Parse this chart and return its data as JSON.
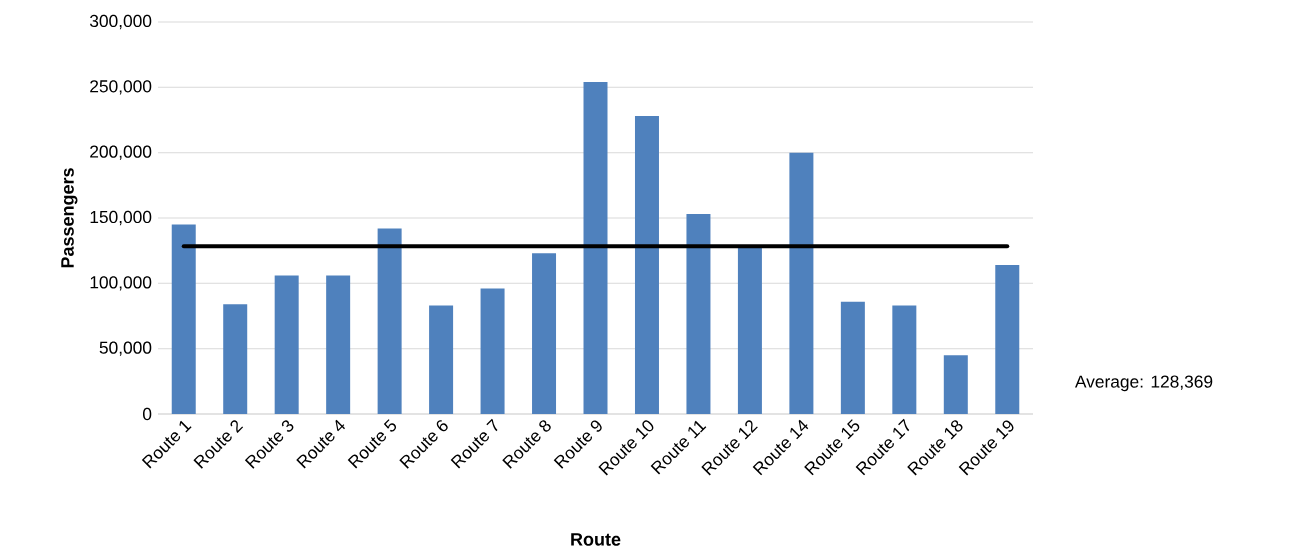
{
  "chart_data": {
    "type": "bar",
    "xlabel": "Route",
    "ylabel": "Passengers",
    "categories": [
      "Route 1",
      "Route 2",
      "Route 3",
      "Route 4",
      "Route 5",
      "Route 6",
      "Route 7",
      "Route 8",
      "Route 9",
      "Route 10",
      "Route 11",
      "Route 12",
      "Route 14",
      "Route 15",
      "Route 17",
      "Route 18",
      "Route 19"
    ],
    "values": [
      145000,
      84000,
      106000,
      106000,
      142000,
      83000,
      96000,
      123000,
      254000,
      228000,
      153000,
      128000,
      200000,
      86000,
      83000,
      45000,
      114000
    ],
    "color": "#4f81bd",
    "ylim": [
      0,
      300000
    ],
    "yticks": [
      {
        "value": 0,
        "label": "0"
      },
      {
        "value": 50000,
        "label": "50,000"
      },
      {
        "value": 100000,
        "label": "100,000"
      },
      {
        "value": 150000,
        "label": "150,000"
      },
      {
        "value": 200000,
        "label": "200,000"
      },
      {
        "value": 250000,
        "label": "250,000"
      },
      {
        "value": 300000,
        "label": "300,000"
      }
    ],
    "grid": "y",
    "ref_lines": [
      {
        "axis": "y",
        "value": 128369,
        "label": "Average: 128,369",
        "color": "#000000"
      }
    ]
  }
}
